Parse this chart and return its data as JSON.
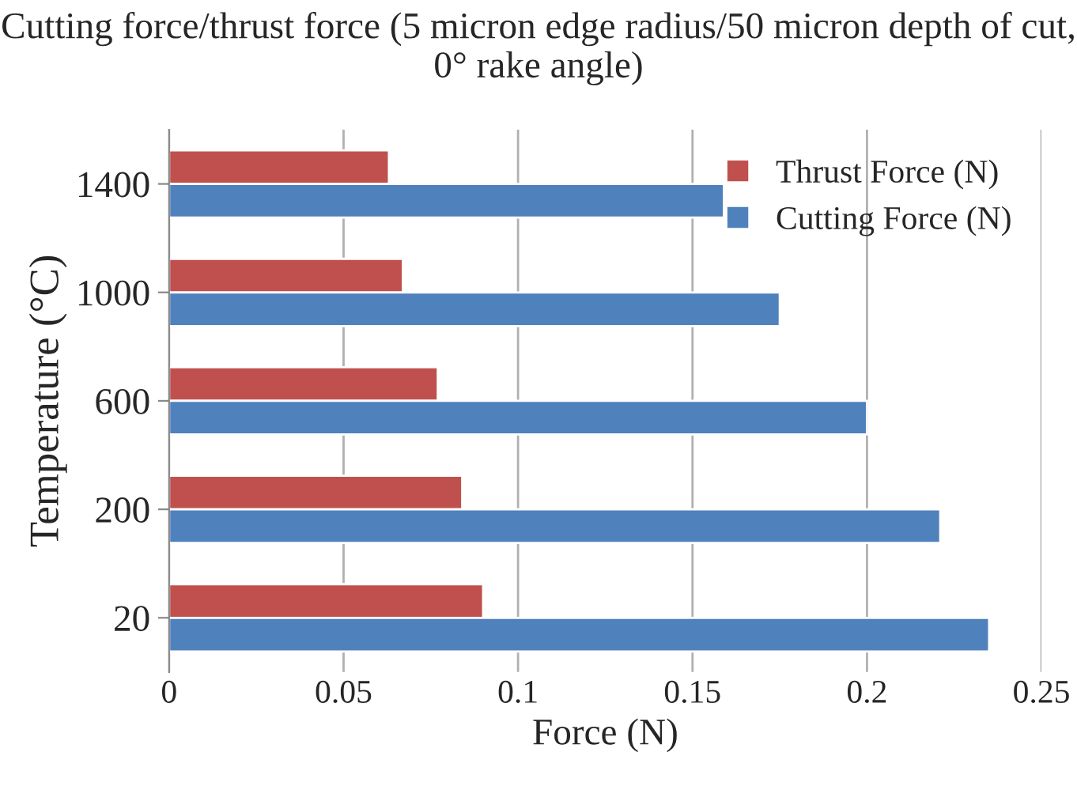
{
  "chart_data": {
    "type": "bar",
    "orientation": "horizontal",
    "title": "Cutting force/thrust force (5 micron edge radius/50 micron depth of cut, 0° rake angle)",
    "xlabel": "Force (N)",
    "ylabel": "Temperature (°C)",
    "categories": [
      "1400",
      "1000",
      "600",
      "200",
      "20"
    ],
    "series": [
      {
        "name": "Thrust Force (N)",
        "color": "#c0504d",
        "values": [
          0.063,
          0.067,
          0.077,
          0.084,
          0.09
        ]
      },
      {
        "name": "Cutting Force (N)",
        "color": "#4f81bd",
        "values": [
          0.159,
          0.175,
          0.2,
          0.221,
          0.235
        ]
      }
    ],
    "xlim": [
      0,
      0.25
    ],
    "xticks": [
      0,
      0.05,
      0.1,
      0.15,
      0.2,
      0.25
    ],
    "grid": "x",
    "legend": "top right"
  }
}
